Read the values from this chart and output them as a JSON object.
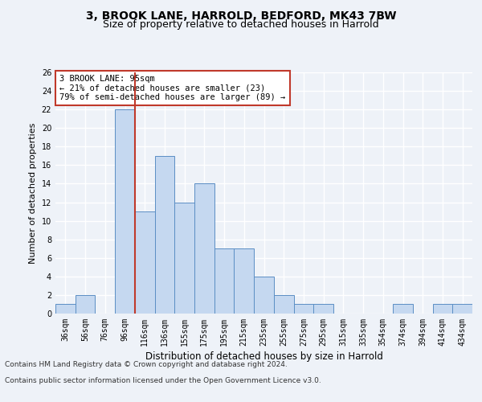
{
  "title1": "3, BROOK LANE, HARROLD, BEDFORD, MK43 7BW",
  "title2": "Size of property relative to detached houses in Harrold",
  "xlabel": "Distribution of detached houses by size in Harrold",
  "ylabel": "Number of detached properties",
  "categories": [
    "36sqm",
    "56sqm",
    "76sqm",
    "96sqm",
    "116sqm",
    "136sqm",
    "155sqm",
    "175sqm",
    "195sqm",
    "215sqm",
    "235sqm",
    "255sqm",
    "275sqm",
    "295sqm",
    "315sqm",
    "335sqm",
    "354sqm",
    "374sqm",
    "394sqm",
    "414sqm",
    "434sqm"
  ],
  "values": [
    1,
    2,
    0,
    22,
    11,
    17,
    12,
    14,
    7,
    7,
    4,
    2,
    1,
    1,
    0,
    0,
    0,
    1,
    0,
    1,
    1
  ],
  "bar_color": "#c5d8f0",
  "bar_edge_color": "#5b8ec4",
  "ylim": [
    0,
    26
  ],
  "yticks": [
    0,
    2,
    4,
    6,
    8,
    10,
    12,
    14,
    16,
    18,
    20,
    22,
    24,
    26
  ],
  "vline_x_idx": 3,
  "vline_color": "#c0392b",
  "annotation_text": "3 BROOK LANE: 95sqm\n← 21% of detached houses are smaller (23)\n79% of semi-detached houses are larger (89) →",
  "annotation_box_color": "#ffffff",
  "annotation_box_edge": "#c0392b",
  "footer1": "Contains HM Land Registry data © Crown copyright and database right 2024.",
  "footer2": "Contains public sector information licensed under the Open Government Licence v3.0.",
  "bg_color": "#eef2f8",
  "plot_bg_color": "#eef2f8",
  "grid_color": "#ffffff",
  "title1_fontsize": 10,
  "title2_fontsize": 9,
  "xlabel_fontsize": 8.5,
  "ylabel_fontsize": 8,
  "tick_fontsize": 7,
  "footer_fontsize": 6.5,
  "annot_fontsize": 7.5
}
